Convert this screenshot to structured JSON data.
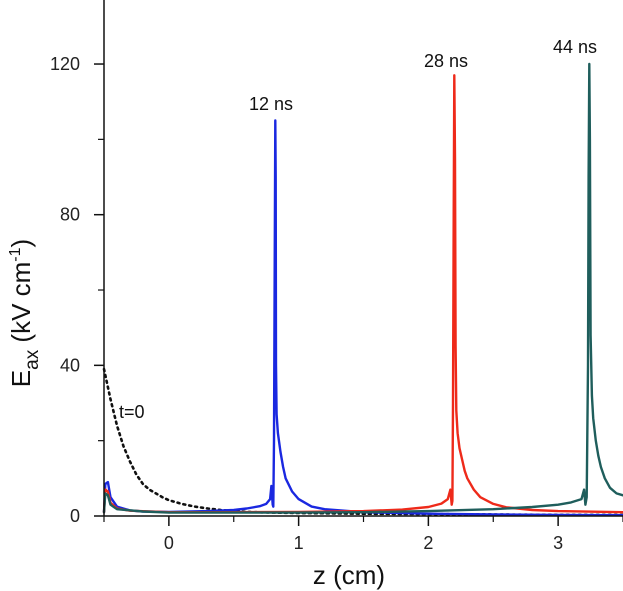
{
  "chart_data": {
    "type": "line",
    "xlabel": "z (cm)",
    "ylabel": {
      "main": "E",
      "sub": "ax",
      "unit": " (kV cm",
      "exp": "-1",
      "close": ")"
    },
    "xlim": [
      -0.5,
      3.5
    ],
    "ylim": [
      0,
      137
    ],
    "x_ticks": [
      0,
      1,
      2,
      3
    ],
    "y_ticks": [
      0,
      40,
      80,
      120
    ],
    "grid": false,
    "legend": "none",
    "series": [
      {
        "name": "t=0",
        "color": "#111111",
        "dash": "dotted",
        "points": [
          [
            -0.5,
            39
          ],
          [
            -0.45,
            31
          ],
          [
            -0.4,
            24
          ],
          [
            -0.35,
            18.5
          ],
          [
            -0.3,
            14.5
          ],
          [
            -0.25,
            11
          ],
          [
            -0.2,
            8.5
          ],
          [
            -0.15,
            7
          ],
          [
            -0.1,
            6
          ],
          [
            -0.05,
            5
          ],
          [
            0.0,
            4.2
          ],
          [
            0.1,
            3.2
          ],
          [
            0.2,
            2.5
          ],
          [
            0.3,
            2.0
          ],
          [
            0.4,
            1.6
          ],
          [
            0.5,
            1.3
          ],
          [
            0.6,
            1.1
          ],
          [
            0.8,
            0.9
          ],
          [
            1.0,
            0.8
          ],
          [
            1.5,
            0.6
          ],
          [
            2.0,
            0.5
          ],
          [
            2.5,
            0.4
          ],
          [
            3.0,
            0.3
          ],
          [
            3.5,
            0.3
          ]
        ]
      },
      {
        "name": "12 ns",
        "color": "#1a28e0",
        "dash": "solid",
        "points": [
          [
            -0.5,
            1
          ],
          [
            -0.49,
            8.5
          ],
          [
            -0.47,
            9
          ],
          [
            -0.45,
            5
          ],
          [
            -0.4,
            2.5
          ],
          [
            -0.3,
            1.5
          ],
          [
            -0.2,
            1.2
          ],
          [
            0.0,
            1.1
          ],
          [
            0.3,
            1.3
          ],
          [
            0.5,
            1.6
          ],
          [
            0.6,
            2.0
          ],
          [
            0.7,
            2.6
          ],
          [
            0.75,
            3.2
          ],
          [
            0.78,
            4.5
          ],
          [
            0.79,
            8
          ],
          [
            0.8,
            3
          ],
          [
            0.805,
            2.5
          ],
          [
            0.81,
            20
          ],
          [
            0.815,
            60
          ],
          [
            0.82,
            105
          ],
          [
            0.823,
            90
          ],
          [
            0.826,
            40
          ],
          [
            0.83,
            27
          ],
          [
            0.84,
            22
          ],
          [
            0.86,
            17
          ],
          [
            0.88,
            13
          ],
          [
            0.9,
            10
          ],
          [
            0.95,
            6.5
          ],
          [
            1.0,
            4.5
          ],
          [
            1.1,
            2.5
          ],
          [
            1.2,
            1.8
          ],
          [
            1.5,
            1.0
          ],
          [
            2.0,
            0.6
          ],
          [
            2.5,
            0.4
          ],
          [
            3.0,
            0.3
          ],
          [
            3.5,
            0.2
          ]
        ]
      },
      {
        "name": "28 ns",
        "color": "#ee2a1a",
        "dash": "solid",
        "points": [
          [
            -0.5,
            1
          ],
          [
            -0.49,
            7
          ],
          [
            -0.47,
            6.5
          ],
          [
            -0.45,
            3.5
          ],
          [
            -0.4,
            2
          ],
          [
            -0.3,
            1.4
          ],
          [
            0.0,
            1.0
          ],
          [
            0.5,
            1.0
          ],
          [
            1.0,
            1.1
          ],
          [
            1.5,
            1.3
          ],
          [
            1.8,
            1.7
          ],
          [
            2.0,
            2.4
          ],
          [
            2.1,
            3.3
          ],
          [
            2.15,
            4.5
          ],
          [
            2.17,
            7
          ],
          [
            2.18,
            3
          ],
          [
            2.185,
            4
          ],
          [
            2.19,
            30
          ],
          [
            2.195,
            80
          ],
          [
            2.2,
            117
          ],
          [
            2.205,
            95
          ],
          [
            2.21,
            45
          ],
          [
            2.215,
            28
          ],
          [
            2.225,
            22
          ],
          [
            2.24,
            18
          ],
          [
            2.26,
            15
          ],
          [
            2.28,
            12
          ],
          [
            2.3,
            10
          ],
          [
            2.35,
            7
          ],
          [
            2.4,
            5
          ],
          [
            2.5,
            3.2
          ],
          [
            2.6,
            2.3
          ],
          [
            2.8,
            1.6
          ],
          [
            3.0,
            1.3
          ],
          [
            3.5,
            1.0
          ]
        ]
      },
      {
        "name": "44 ns",
        "color": "#1f5e5c",
        "dash": "solid",
        "points": [
          [
            -0.5,
            1
          ],
          [
            -0.49,
            6
          ],
          [
            -0.47,
            5.5
          ],
          [
            -0.45,
            3
          ],
          [
            -0.4,
            1.8
          ],
          [
            -0.2,
            1.2
          ],
          [
            0.0,
            0.9
          ],
          [
            0.5,
            0.9
          ],
          [
            1.0,
            0.9
          ],
          [
            1.5,
            1.0
          ],
          [
            2.0,
            1.3
          ],
          [
            2.5,
            1.8
          ],
          [
            2.8,
            2.4
          ],
          [
            3.0,
            3.0
          ],
          [
            3.1,
            3.6
          ],
          [
            3.18,
            4.5
          ],
          [
            3.2,
            7
          ],
          [
            3.21,
            3
          ],
          [
            3.22,
            5
          ],
          [
            3.23,
            40
          ],
          [
            3.235,
            90
          ],
          [
            3.24,
            120
          ],
          [
            3.245,
            100
          ],
          [
            3.25,
            48
          ],
          [
            3.26,
            32
          ],
          [
            3.27,
            26
          ],
          [
            3.29,
            20
          ],
          [
            3.31,
            16
          ],
          [
            3.33,
            13
          ],
          [
            3.36,
            10
          ],
          [
            3.4,
            7.5
          ],
          [
            3.45,
            6
          ],
          [
            3.5,
            5.5
          ]
        ]
      }
    ]
  }
}
